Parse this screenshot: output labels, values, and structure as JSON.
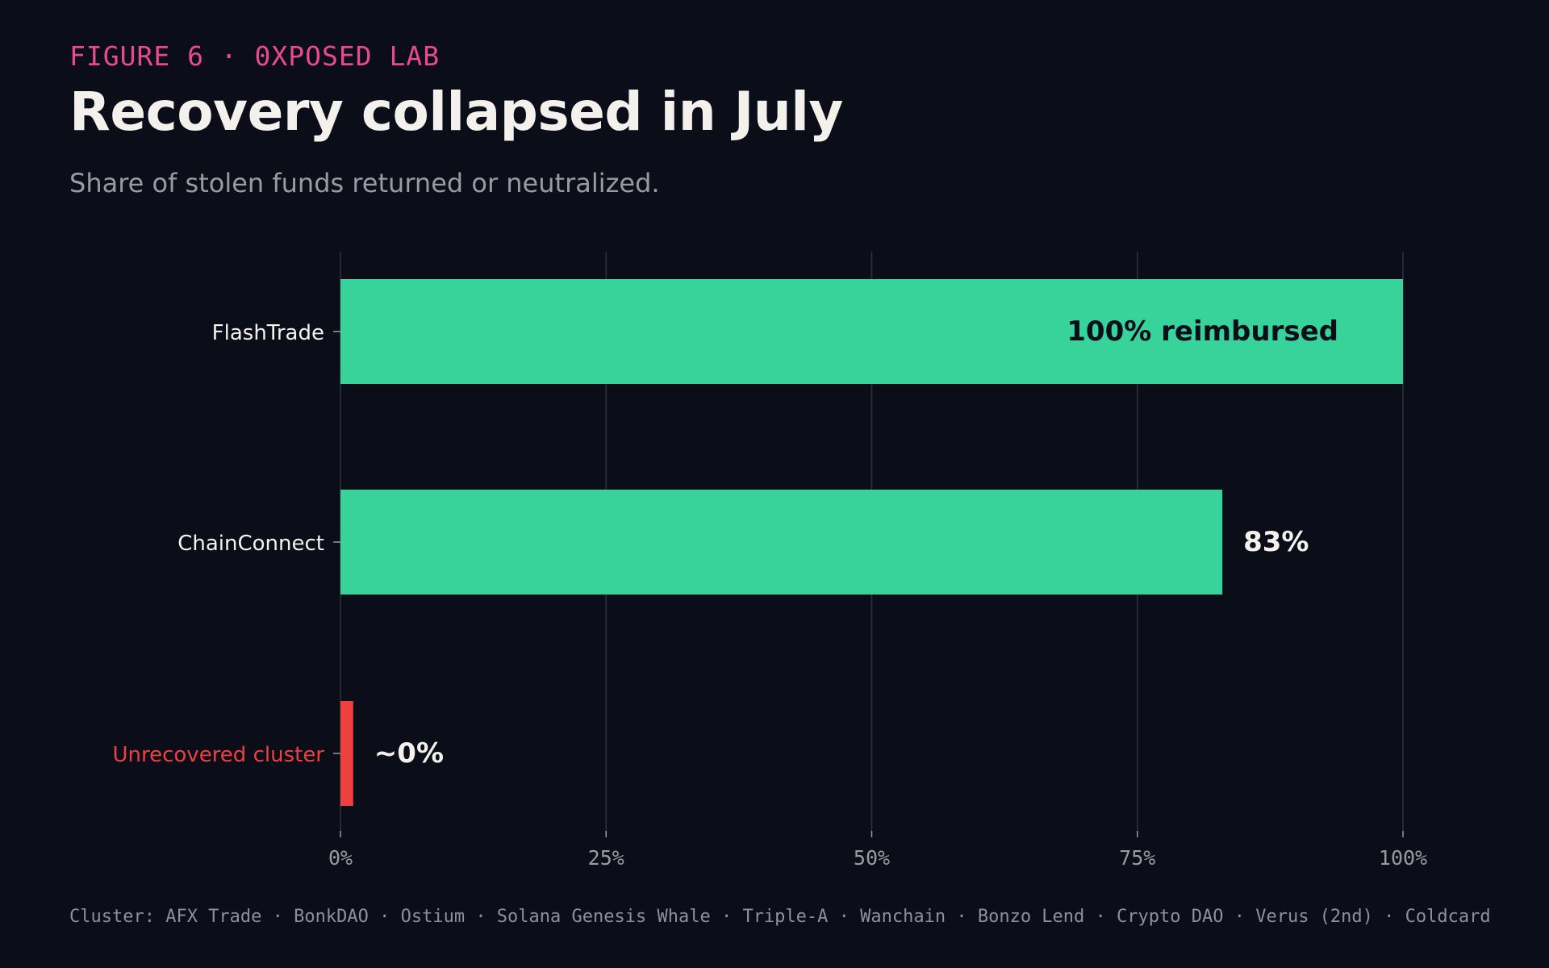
{
  "header": {
    "eyebrow": "FIGURE 6 · 0XPOSED LAB",
    "title": "Recovery collapsed in July",
    "subtitle": "Share of stolen funds returned or neutralized."
  },
  "footnote": "Cluster: AFX Trade · BonkDAO · Ostium · Solana Genesis Whale · Triple-A · Wanchain · Bonzo Lend · Crypto DAO · Verus (2nd) · Coldcard",
  "colors": {
    "recovered": "#37d39b",
    "unrecovered": "#ef4040",
    "grid": "#2e3140",
    "tick_text": "#9a9aa3",
    "label_text": "#f4f1ec",
    "inside_label_text": "#0b0d19"
  },
  "chart_data": {
    "type": "bar",
    "orientation": "horizontal",
    "categories": [
      "FlashTrade",
      "ChainConnect",
      "Unrecovered cluster"
    ],
    "values": [
      100,
      83,
      1.2
    ],
    "value_labels": [
      "100% reimbursed",
      "83%",
      "~0%"
    ],
    "xlim": [
      0,
      100
    ],
    "xticks": [
      0,
      25,
      50,
      75,
      100
    ],
    "xtick_labels": [
      "0%",
      "25%",
      "50%",
      "75%",
      "100%"
    ],
    "grid": "vertical",
    "xlabel": "",
    "ylabel": ""
  }
}
